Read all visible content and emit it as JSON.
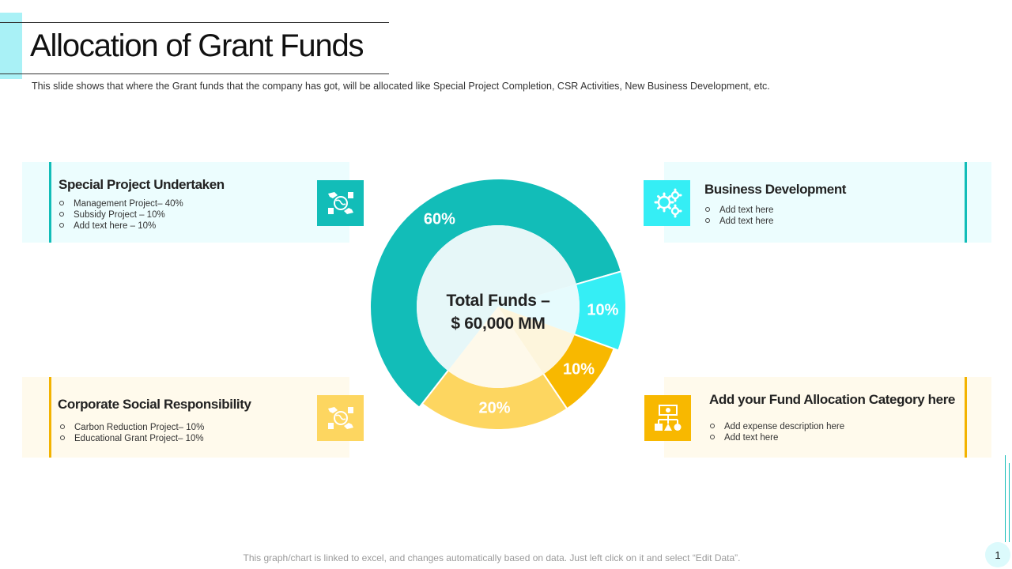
{
  "header": {
    "title": "Allocation of Grant Funds",
    "subtitle": "This slide shows that where the Grant funds that the company has got, will be allocated like Special Project Completion, CSR Activities, New Business Development,  etc."
  },
  "cards": {
    "special_project": {
      "title": "Special Project Undertaken",
      "items": [
        "Management Project– 40%",
        "Subsidy Project – 10%",
        "Add text here – 10%"
      ],
      "icon": "globe-hands-icon"
    },
    "business_development": {
      "title": "Business Development",
      "items": [
        "Add text here",
        "Add text here"
      ],
      "icon": "gears-icon"
    },
    "csr": {
      "title": "Corporate Social Responsibility",
      "items": [
        "Carbon Reduction Project– 10%",
        "Educational Grant Project– 10%"
      ],
      "icon": "globe-hands-icon"
    },
    "fund_category": {
      "title": "Add your Fund Allocation Category here",
      "items": [
        "Add expense description here",
        "Add text here"
      ],
      "icon": "money-hierarchy-icon"
    }
  },
  "chart_data": {
    "type": "pie",
    "style": "donut",
    "center_label_line1": "Total Funds –",
    "center_label_line2": "$ 60,000 MM",
    "slices": [
      {
        "label": "60%",
        "value": 60,
        "color": "#12bdb8"
      },
      {
        "label": "10%",
        "value": 10,
        "color": "#35eef5"
      },
      {
        "label": "10%",
        "value": 10,
        "color": "#f8b800"
      },
      {
        "label": "20%",
        "value": 20,
        "color": "#fdd660"
      }
    ]
  },
  "colors": {
    "teal": "#12bdb8",
    "cyan": "#35eef5",
    "amber": "#f8b800",
    "yellow": "#fdd660",
    "teal_card": "#ecfdfe",
    "yellow_card": "#fffaec"
  },
  "footer": {
    "note": "This graph/chart is linked to excel, and changes automatically based on data. Just left click on it and select “Edit Data”.",
    "page_number": "1"
  }
}
